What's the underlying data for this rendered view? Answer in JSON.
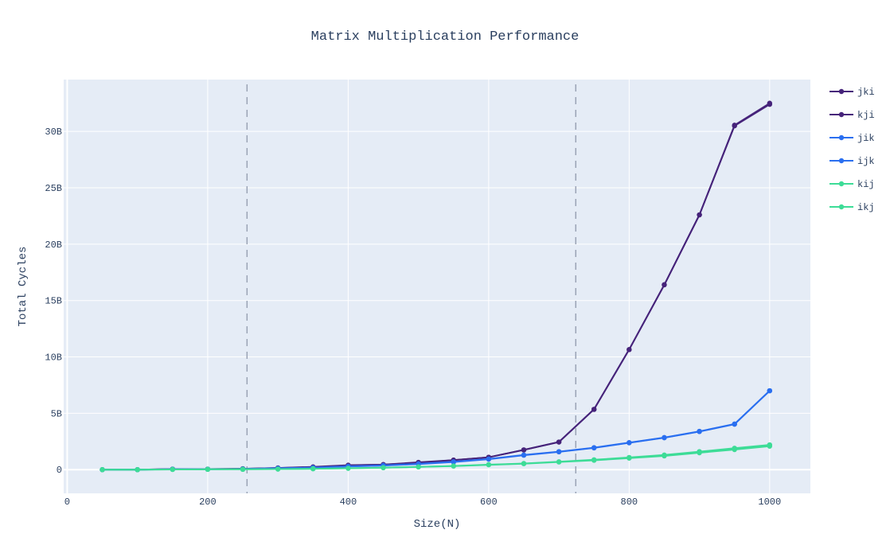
{
  "chart_data": {
    "type": "line",
    "title": "Matrix Multiplication Performance",
    "xlabel": "Size(N)",
    "ylabel": "Total Cycles",
    "xlim": [
      -5,
      1058
    ],
    "ylim": [
      -2.1,
      34.6
    ],
    "x_ticks": [
      0,
      200,
      400,
      600,
      800,
      1000
    ],
    "x_tick_labels": [
      "0",
      "200",
      "400",
      "600",
      "800",
      "1000"
    ],
    "y_ticks": [
      0,
      5,
      10,
      15,
      20,
      25,
      30
    ],
    "y_tick_labels": [
      "0",
      "5B",
      "10B",
      "15B",
      "20B",
      "25B",
      "30B"
    ],
    "y_unit": "billions of cycles",
    "grid": true,
    "legend_position": "right",
    "vlines": [
      {
        "x": 256,
        "style": "dashed",
        "color": "#9aa3b5"
      },
      {
        "x": 724,
        "style": "dashed",
        "color": "#9aa3b5"
      }
    ],
    "x": [
      50,
      100,
      150,
      200,
      250,
      300,
      350,
      400,
      450,
      500,
      550,
      600,
      650,
      700,
      750,
      800,
      850,
      900,
      950,
      1000
    ],
    "series": [
      {
        "name": "jki",
        "color": "#46237a",
        "values": [
          0.0,
          0.0,
          0.05,
          0.05,
          0.08,
          0.15,
          0.25,
          0.4,
          0.45,
          0.65,
          0.85,
          1.1,
          1.75,
          2.45,
          5.35,
          10.65,
          16.4,
          22.6,
          30.5,
          32.4
        ]
      },
      {
        "name": "kji",
        "color": "#46237a",
        "values": [
          0.0,
          0.0,
          0.05,
          0.05,
          0.08,
          0.15,
          0.22,
          0.38,
          0.45,
          0.6,
          0.85,
          1.1,
          1.75,
          2.45,
          5.35,
          10.65,
          16.4,
          22.6,
          30.55,
          32.5
        ]
      },
      {
        "name": "jik",
        "color": "#2a6ff0",
        "values": [
          0.0,
          0.0,
          0.04,
          0.04,
          0.06,
          0.12,
          0.18,
          0.3,
          0.38,
          0.52,
          0.7,
          0.95,
          1.3,
          1.6,
          1.95,
          2.4,
          2.85,
          3.4,
          4.05,
          7.0
        ]
      },
      {
        "name": "ijk",
        "color": "#2a6ff0",
        "values": [
          0.0,
          0.0,
          0.04,
          0.04,
          0.06,
          0.12,
          0.17,
          0.28,
          0.36,
          0.5,
          0.68,
          0.93,
          1.28,
          1.58,
          1.93,
          2.38,
          2.83,
          3.38,
          4.03,
          7.0
        ]
      },
      {
        "name": "kij",
        "color": "#3ddc97",
        "values": [
          0.0,
          0.0,
          0.02,
          0.03,
          0.03,
          0.05,
          0.08,
          0.12,
          0.18,
          0.25,
          0.33,
          0.45,
          0.55,
          0.7,
          0.88,
          1.08,
          1.3,
          1.6,
          1.9,
          2.2
        ]
      },
      {
        "name": "ikj",
        "color": "#3ddc97",
        "values": [
          0.0,
          0.0,
          0.02,
          0.03,
          0.03,
          0.05,
          0.08,
          0.12,
          0.17,
          0.24,
          0.32,
          0.43,
          0.53,
          0.68,
          0.83,
          1.02,
          1.22,
          1.5,
          1.78,
          2.08
        ]
      }
    ]
  },
  "legend": {
    "items": [
      {
        "label": "jki",
        "color": "#46237a"
      },
      {
        "label": "kji",
        "color": "#46237a"
      },
      {
        "label": "jik",
        "color": "#2a6ff0"
      },
      {
        "label": "ijk",
        "color": "#2a6ff0"
      },
      {
        "label": "kij",
        "color": "#3ddc97"
      },
      {
        "label": "ikj",
        "color": "#3ddc97"
      }
    ]
  },
  "colors": {
    "plot_bg": "#e5ecf6",
    "grid": "#ffffff",
    "text": "#2a3f5f",
    "vline": "#9aa3b5"
  }
}
